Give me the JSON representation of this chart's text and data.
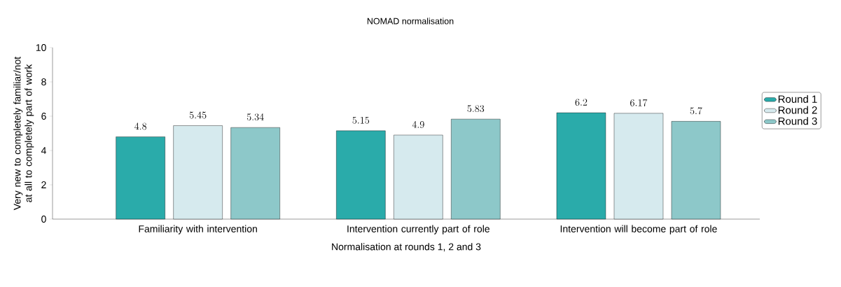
{
  "chart_data": {
    "type": "bar",
    "title": "NOMAD normalisation",
    "xlabel": "Normalisation at rounds 1, 2 and 3",
    "ylabel": "Very new to completely familiar/not at all to completely part of work",
    "categories": [
      "Familiarity with intervention",
      "Intervention currently part of role",
      "Intervention will become part of role"
    ],
    "series": [
      {
        "name": "Round 1",
        "color": "#2aabaa",
        "values": [
          4.8,
          5.15,
          6.2
        ]
      },
      {
        "name": "Round 2",
        "color": "#d6eaee",
        "values": [
          5.45,
          4.9,
          6.17
        ]
      },
      {
        "name": "Round 3",
        "color": "#8dc8c9",
        "values": [
          5.34,
          5.83,
          5.7
        ]
      }
    ],
    "ylim": [
      0,
      10
    ],
    "yticks": [
      0,
      2,
      4,
      6,
      8,
      10
    ],
    "data_labels": true,
    "legend": "right",
    "grid": false
  }
}
